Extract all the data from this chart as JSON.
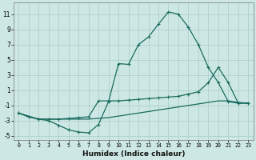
{
  "xlabel": "Humidex (Indice chaleur)",
  "background_color": "#cde8e4",
  "grid_color": "#aed0cc",
  "line_color": "#1a6b5e",
  "xlim": [
    -0.5,
    23.5
  ],
  "ylim": [
    -5.5,
    12.5
  ],
  "xticks": [
    0,
    1,
    2,
    3,
    4,
    5,
    6,
    7,
    8,
    9,
    10,
    11,
    12,
    13,
    14,
    15,
    16,
    17,
    18,
    19,
    20,
    21,
    22,
    23
  ],
  "yticks": [
    -5,
    -3,
    -1,
    1,
    3,
    5,
    7,
    9,
    11
  ],
  "series1_x": [
    0,
    1,
    2,
    3,
    4,
    5,
    6,
    7,
    8,
    9,
    10,
    11,
    12,
    13,
    14,
    15,
    16,
    17,
    18,
    19,
    20,
    21,
    22,
    23
  ],
  "series1_y": [
    -2.0,
    -2.5,
    -2.8,
    -3.0,
    -3.6,
    -4.2,
    -4.5,
    -4.6,
    -3.5,
    -0.5,
    4.5,
    4.4,
    7.0,
    8.0,
    9.7,
    11.3,
    11.0,
    9.3,
    7.0,
    4.0,
    2.0,
    -0.5,
    -0.7,
    -0.7
  ],
  "series2_x": [
    0,
    2,
    3,
    4,
    5,
    6,
    7,
    8,
    9,
    10,
    11,
    12,
    13,
    14,
    15,
    16,
    17,
    18,
    19,
    20,
    21,
    22,
    23
  ],
  "series2_y": [
    -2.0,
    -2.8,
    -2.8,
    -2.8,
    -2.7,
    -2.6,
    -2.5,
    -0.4,
    -0.4,
    -0.4,
    -0.3,
    -0.2,
    -0.1,
    0.0,
    0.1,
    0.2,
    0.5,
    0.8,
    2.0,
    4.0,
    2.0,
    -0.7,
    -0.7
  ],
  "series3_x": [
    0,
    1,
    2,
    3,
    4,
    5,
    6,
    7,
    8,
    9,
    10,
    11,
    12,
    13,
    14,
    15,
    16,
    17,
    18,
    19,
    20,
    21,
    22,
    23
  ],
  "series3_y": [
    -2.0,
    -2.5,
    -2.8,
    -2.8,
    -2.8,
    -2.8,
    -2.8,
    -2.8,
    -2.7,
    -2.6,
    -2.4,
    -2.2,
    -2.0,
    -1.8,
    -1.6,
    -1.4,
    -1.2,
    -1.0,
    -0.8,
    -0.6,
    -0.4,
    -0.4,
    -0.6,
    -0.7
  ]
}
